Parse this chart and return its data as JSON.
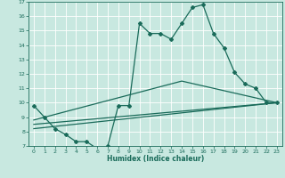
{
  "xlabel": "Humidex (Indice chaleur)",
  "background_color": "#c8e8e0",
  "grid_color": "#ffffff",
  "line_color": "#1a6b5a",
  "xlim": [
    -0.5,
    23.5
  ],
  "ylim": [
    7,
    17
  ],
  "yticks": [
    7,
    8,
    9,
    10,
    11,
    12,
    13,
    14,
    15,
    16,
    17
  ],
  "xticks": [
    0,
    1,
    2,
    3,
    4,
    5,
    6,
    7,
    8,
    9,
    10,
    11,
    12,
    13,
    14,
    15,
    16,
    17,
    18,
    19,
    20,
    21,
    22,
    23
  ],
  "series": [
    {
      "x": [
        0,
        1,
        2,
        3,
        4,
        5,
        6,
        7,
        8,
        9,
        10,
        11,
        12,
        13,
        14,
        15,
        16,
        17,
        18,
        19,
        20,
        21,
        22,
        23
      ],
      "y": [
        9.8,
        9.0,
        8.2,
        7.8,
        7.3,
        7.3,
        6.8,
        7.0,
        9.8,
        9.8,
        15.5,
        14.8,
        14.8,
        14.4,
        15.5,
        16.6,
        16.8,
        14.8,
        13.8,
        12.1,
        11.3,
        11.0,
        10.0,
        10.0
      ],
      "marker": "D",
      "markersize": 2.0,
      "linewidth": 0.9,
      "has_marker": true
    },
    {
      "x": [
        0,
        23
      ],
      "y": [
        8.2,
        10.0
      ],
      "markersize": 0,
      "linewidth": 0.9,
      "has_marker": false
    },
    {
      "x": [
        0,
        23
      ],
      "y": [
        8.5,
        10.0
      ],
      "markersize": 0,
      "linewidth": 0.9,
      "has_marker": false
    },
    {
      "x": [
        0,
        14,
        23
      ],
      "y": [
        8.8,
        11.5,
        10.0
      ],
      "markersize": 0,
      "linewidth": 0.9,
      "has_marker": false
    }
  ]
}
